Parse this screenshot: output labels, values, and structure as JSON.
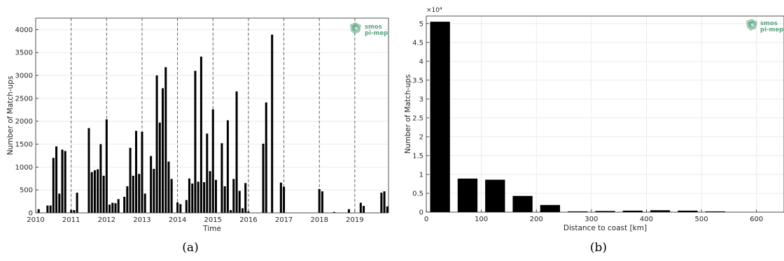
{
  "logo_text": [
    "smos",
    "pi-mep"
  ],
  "colors": {
    "bar": "#000000",
    "grid": "#e6e6e6",
    "axis": "#262626",
    "logo": "#5aa37f"
  },
  "chart_data": [
    {
      "type": "bar",
      "caption": "(a)",
      "xlabel": "Time",
      "ylabel": "Number of Match-ups",
      "xlim": [
        2010.0,
        2019.95
      ],
      "ylim": [
        0,
        4250
      ],
      "xticks": [
        2010,
        2011,
        2012,
        2013,
        2014,
        2015,
        2016,
        2017,
        2018,
        2019
      ],
      "yticks": [
        0,
        500,
        1000,
        1500,
        2000,
        2500,
        3000,
        3500,
        4000
      ],
      "year_dividers": [
        2011,
        2012,
        2013,
        2014,
        2015,
        2016,
        2017,
        2018,
        2019
      ],
      "grid": true,
      "x": [
        2010.083,
        2010.333,
        2010.417,
        2010.5,
        2010.583,
        2010.667,
        2010.75,
        2010.833,
        2011.0,
        2011.083,
        2011.167,
        2011.5,
        2011.583,
        2011.667,
        2011.75,
        2011.833,
        2011.917,
        2012.0,
        2012.083,
        2012.167,
        2012.25,
        2012.333,
        2012.5,
        2012.583,
        2012.667,
        2012.75,
        2012.833,
        2012.917,
        2013.0,
        2013.083,
        2013.25,
        2013.333,
        2013.417,
        2013.5,
        2013.583,
        2013.667,
        2013.75,
        2013.833,
        2014.0,
        2014.083,
        2014.25,
        2014.333,
        2014.417,
        2014.5,
        2014.583,
        2014.667,
        2014.75,
        2014.833,
        2014.917,
        2015.0,
        2015.083,
        2015.25,
        2015.333,
        2015.417,
        2015.5,
        2015.583,
        2015.667,
        2015.75,
        2015.833,
        2015.917,
        2016.0,
        2016.417,
        2016.5,
        2016.667,
        2016.917,
        2017.0,
        2018.0,
        2018.083,
        2018.417,
        2018.833,
        2019.167,
        2019.25,
        2019.75,
        2019.833,
        2019.917
      ],
      "values": [
        80,
        160,
        160,
        1200,
        1450,
        420,
        1380,
        1350,
        65,
        60,
        440,
        1850,
        890,
        930,
        950,
        1500,
        810,
        2040,
        180,
        220,
        210,
        300,
        350,
        580,
        1420,
        810,
        1790,
        850,
        1770,
        420,
        1240,
        960,
        3000,
        1970,
        2720,
        3180,
        1120,
        740,
        230,
        190,
        280,
        750,
        640,
        3100,
        680,
        3410,
        670,
        1730,
        910,
        2260,
        720,
        1520,
        580,
        2020,
        60,
        740,
        2650,
        480,
        100,
        650,
        30,
        1510,
        2410,
        3890,
        660,
        570,
        520,
        470,
        20,
        80,
        220,
        150,
        440,
        470,
        140
      ]
    },
    {
      "type": "bar",
      "caption": "(b)",
      "xlabel": "Distance to coast [km]",
      "ylabel": "Number of Match-ups",
      "axis_multiplier": "×10⁴",
      "xlim": [
        0,
        650
      ],
      "ylim": [
        0,
        5.2
      ],
      "xticks": [
        0,
        100,
        200,
        300,
        400,
        500,
        600
      ],
      "yticks": [
        0,
        0.5,
        1,
        1.5,
        2,
        2.5,
        3,
        3.5,
        4,
        4.5,
        5
      ],
      "grid": true,
      "bin_width": 50,
      "x": [
        25,
        75,
        125,
        175,
        225,
        275,
        325,
        375,
        425,
        475,
        525
      ],
      "values": [
        5.05,
        0.89,
        0.86,
        0.43,
        0.19,
        0.02,
        0.03,
        0.04,
        0.05,
        0.04,
        0.02
      ]
    }
  ]
}
